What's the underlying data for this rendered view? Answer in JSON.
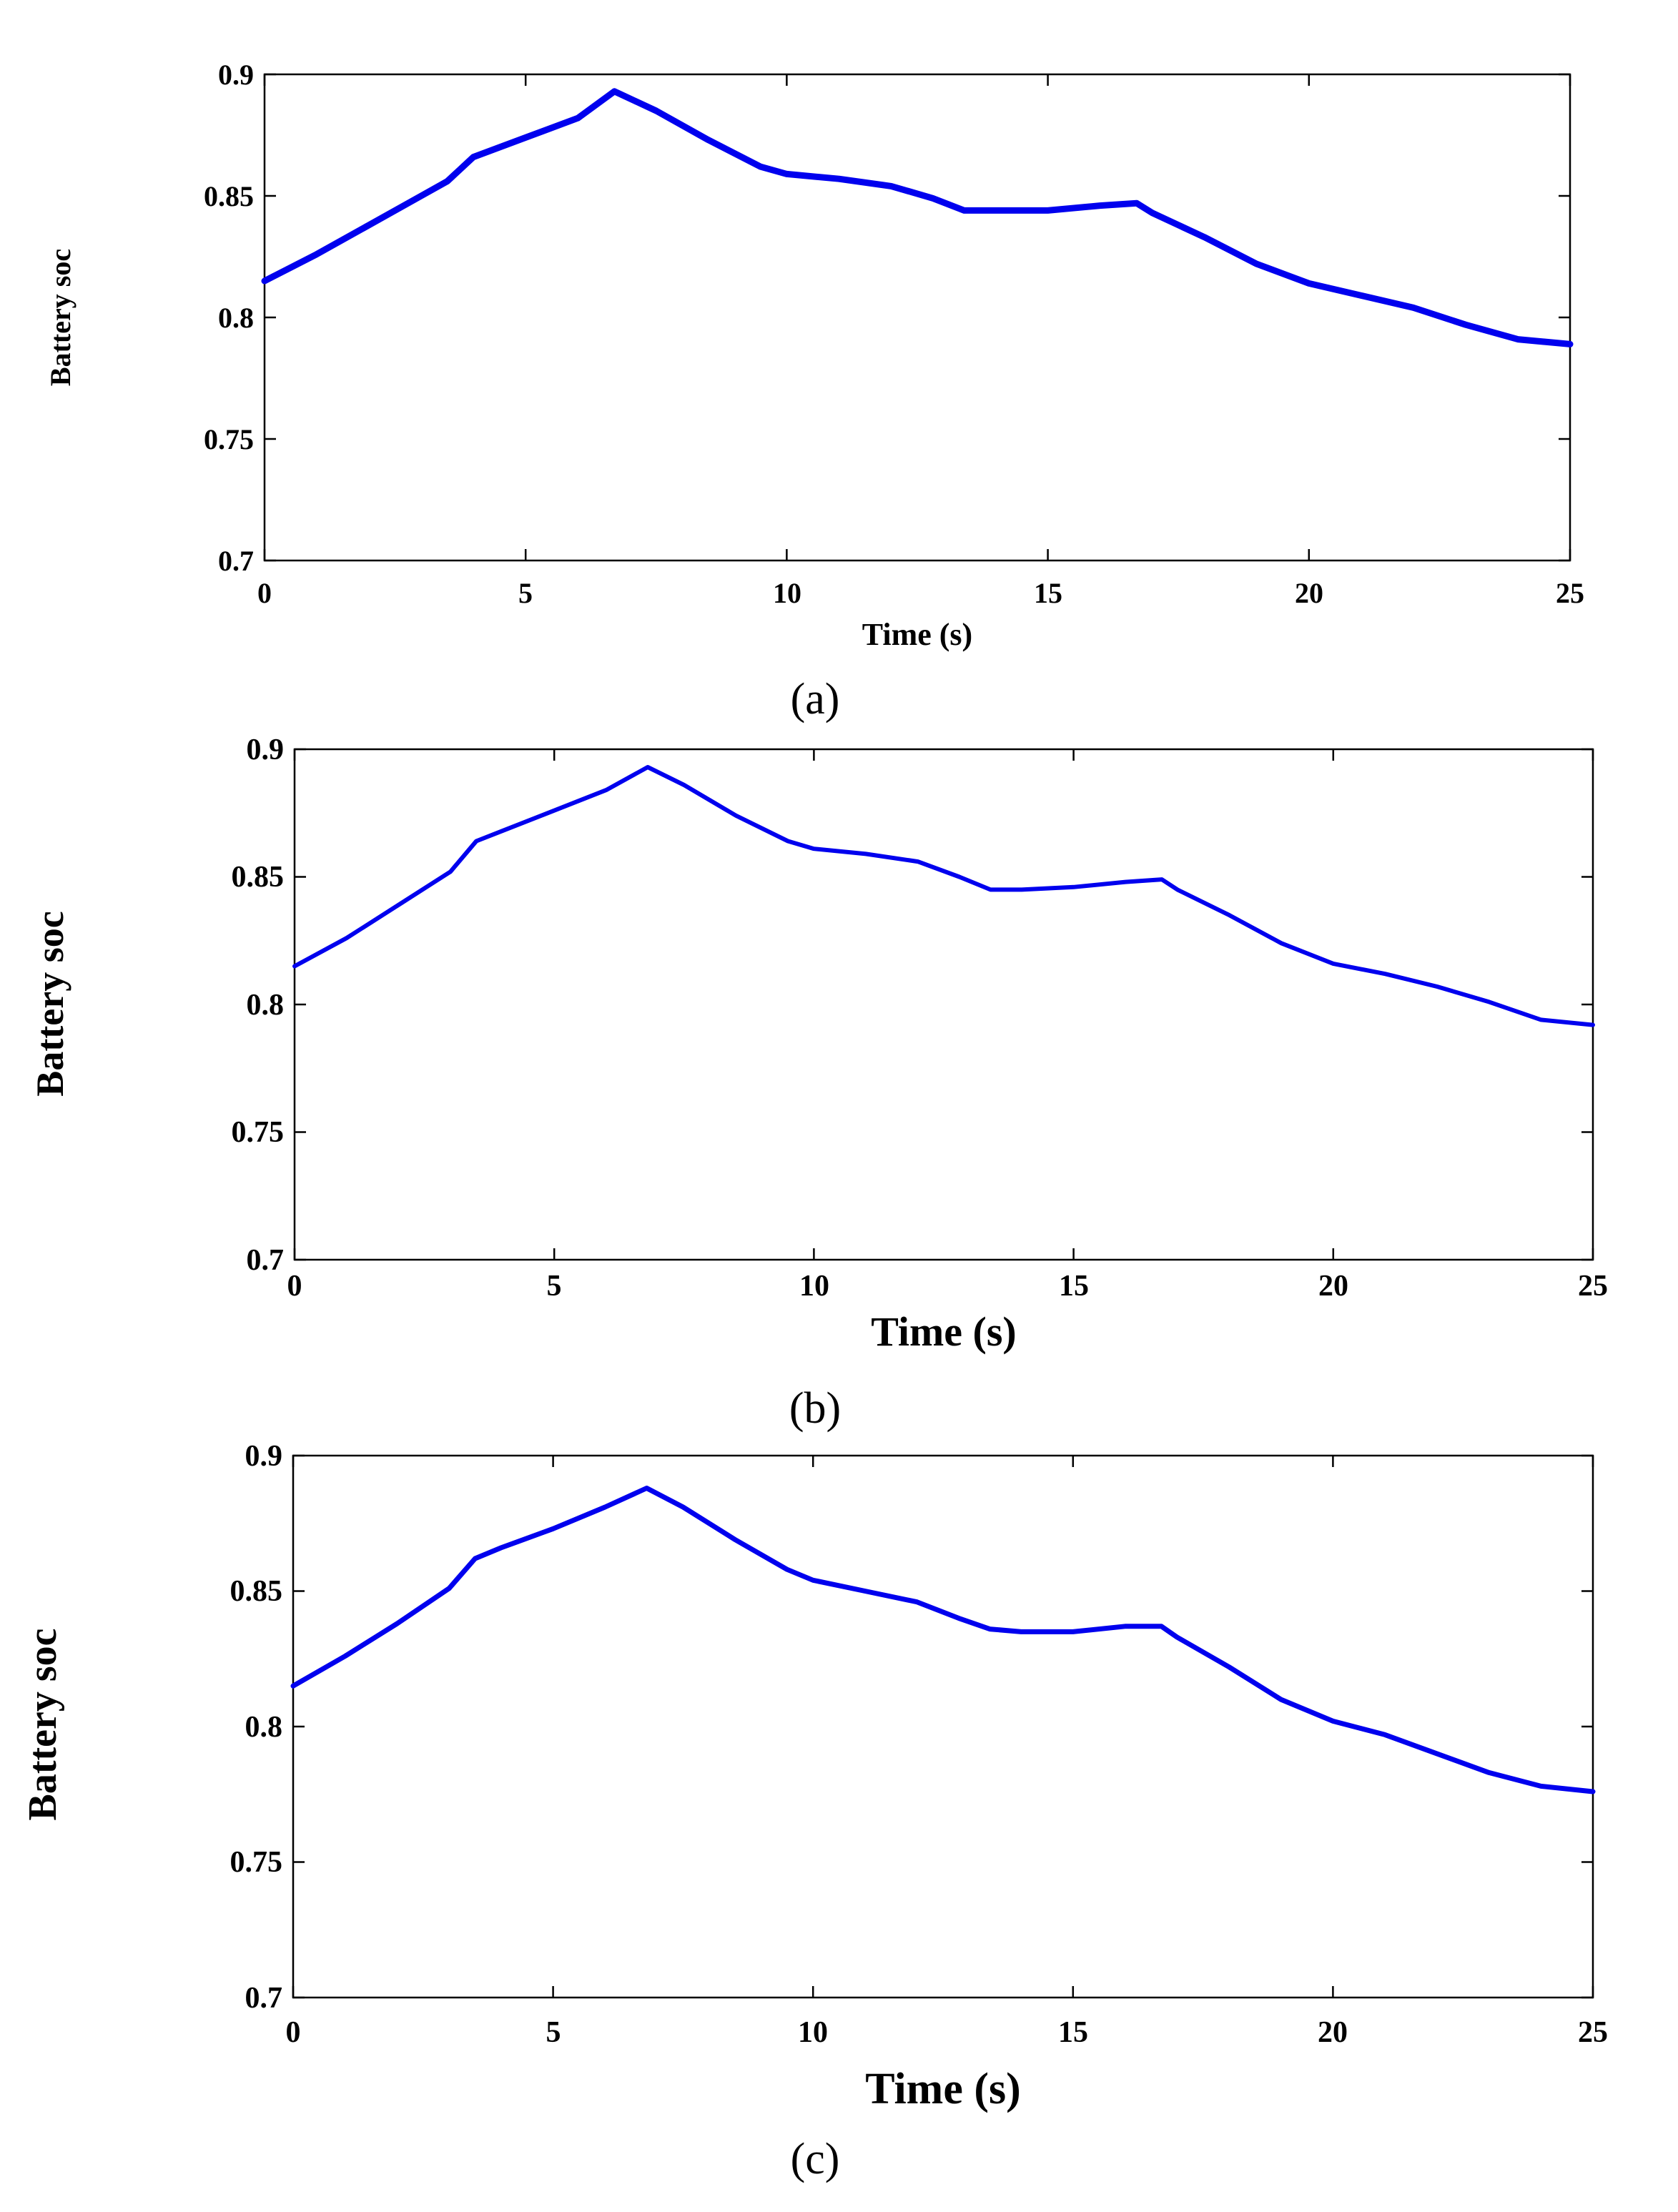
{
  "chart_data": [
    {
      "type": "line",
      "panel_label": "(a)",
      "xlabel": "Time (s)",
      "ylabel": "Battery soc",
      "xlim": [
        0,
        25
      ],
      "ylim": [
        0.7,
        0.9
      ],
      "xticks": [
        "0",
        "5",
        "10",
        "15",
        "20",
        "25"
      ],
      "yticks": [
        "0.7",
        "0.75",
        "0.8",
        "0.85",
        "0.9"
      ],
      "grid": false,
      "series": [
        {
          "name": "Battery soc",
          "color": "#0000ee",
          "x": [
            0,
            1,
            2,
            3,
            3.5,
            4,
            5,
            6,
            6.7,
            7.5,
            8.5,
            9.5,
            10,
            11,
            12,
            12.8,
            13.4,
            14,
            15,
            16,
            16.7,
            17,
            18,
            19,
            20,
            21,
            22,
            23,
            24,
            25
          ],
          "y": [
            0.815,
            0.826,
            0.838,
            0.85,
            0.856,
            0.866,
            0.874,
            0.882,
            0.893,
            0.885,
            0.873,
            0.862,
            0.859,
            0.857,
            0.854,
            0.849,
            0.844,
            0.844,
            0.844,
            0.846,
            0.847,
            0.843,
            0.833,
            0.822,
            0.814,
            0.809,
            0.804,
            0.797,
            0.791,
            0.789
          ]
        }
      ]
    },
    {
      "type": "line",
      "panel_label": "(b)",
      "xlabel": "Time (s)",
      "ylabel": "Battery soc",
      "xlim": [
        0,
        25
      ],
      "ylim": [
        0.7,
        0.9
      ],
      "xticks": [
        "0",
        "5",
        "10",
        "15",
        "20",
        "25"
      ],
      "yticks": [
        "0.7",
        "0.75",
        "0.8",
        "0.85",
        "0.9"
      ],
      "grid": false,
      "series": [
        {
          "name": "Battery soc",
          "color": "#0000ee",
          "x": [
            0,
            1,
            2,
            3,
            3.5,
            4,
            5,
            6,
            6.8,
            7.5,
            8.5,
            9.5,
            10,
            11,
            12,
            12.8,
            13.4,
            14,
            15,
            16,
            16.7,
            17,
            18,
            19,
            20,
            21,
            22,
            23,
            24,
            25
          ],
          "y": [
            0.815,
            0.826,
            0.839,
            0.852,
            0.864,
            0.868,
            0.876,
            0.884,
            0.893,
            0.886,
            0.874,
            0.864,
            0.861,
            0.859,
            0.856,
            0.85,
            0.845,
            0.845,
            0.846,
            0.848,
            0.849,
            0.845,
            0.835,
            0.824,
            0.816,
            0.812,
            0.807,
            0.801,
            0.794,
            0.792
          ]
        }
      ]
    },
    {
      "type": "line",
      "panel_label": "(c)",
      "xlabel": "Time (s)",
      "ylabel": "Battery soc",
      "xlim": [
        0,
        25
      ],
      "ylim": [
        0.7,
        0.9
      ],
      "xticks": [
        "0",
        "5",
        "10",
        "15",
        "20",
        "25"
      ],
      "yticks": [
        "0.7",
        "0.75",
        "0.8",
        "0.85",
        "0.9"
      ],
      "grid": false,
      "series": [
        {
          "name": "Battery soc",
          "color": "#0000ee",
          "x": [
            0,
            1,
            2,
            3,
            3.5,
            4,
            5,
            6,
            6.8,
            7.5,
            8.5,
            9.5,
            10,
            11,
            12,
            12.8,
            13.4,
            14,
            15,
            16,
            16.7,
            17,
            18,
            19,
            20,
            21,
            22,
            23,
            24,
            25
          ],
          "y": [
            0.815,
            0.826,
            0.838,
            0.851,
            0.862,
            0.866,
            0.873,
            0.881,
            0.888,
            0.881,
            0.869,
            0.858,
            0.854,
            0.85,
            0.846,
            0.84,
            0.836,
            0.835,
            0.835,
            0.837,
            0.837,
            0.833,
            0.822,
            0.81,
            0.802,
            0.797,
            0.79,
            0.783,
            0.778,
            0.776
          ]
        }
      ]
    }
  ]
}
